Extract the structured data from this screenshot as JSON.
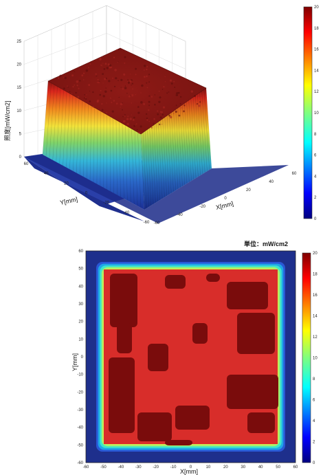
{
  "figure": {
    "unit_label": "単位：mW/cm2"
  },
  "chart_data": [
    {
      "type": "surface",
      "title": "",
      "xlabel": "X[mm]",
      "ylabel": "Y[mm]",
      "zlabel": "照度[mW/cm2]",
      "xlim": [
        -60,
        60
      ],
      "ylim": [
        -60,
        60
      ],
      "zlim": [
        0,
        25
      ],
      "x_ticks": [
        "-60",
        "-40",
        "-20",
        "0",
        "20",
        "40",
        "60"
      ],
      "y_ticks": [
        "60",
        "40",
        "20",
        "0",
        "-20",
        "-40",
        "-60"
      ],
      "z_ticks": [
        "0",
        "5",
        "10",
        "15",
        "20",
        "25"
      ],
      "plateau_value": 20,
      "plateau_extent_mm": [
        -55,
        55
      ],
      "grid": true,
      "colorbar": {
        "range": [
          0,
          20
        ],
        "ticks": [
          "0",
          "2",
          "4",
          "6",
          "8",
          "10",
          "12",
          "14",
          "16",
          "18",
          "20"
        ],
        "colormap": "jet"
      }
    },
    {
      "type": "heatmap",
      "title": "",
      "xlabel": "X[mm]",
      "ylabel": "Y[mm]",
      "xlim": [
        -60,
        60
      ],
      "ylim": [
        -60,
        60
      ],
      "x_ticks": [
        "-60",
        "-50",
        "-40",
        "-30",
        "-20",
        "-10",
        "0",
        "10",
        "20",
        "30",
        "40",
        "50",
        "60"
      ],
      "y_ticks": [
        "60",
        "50",
        "40",
        "30",
        "20",
        "10",
        "0",
        "-10",
        "-20",
        "-30",
        "-40",
        "-50",
        "-60"
      ],
      "plateau_value": 19,
      "plateau_extent_mm": [
        -55,
        55
      ],
      "background_value": 0,
      "colorbar": {
        "range": [
          0,
          20
        ],
        "ticks": [
          "0",
          "2",
          "4",
          "6",
          "8",
          "10",
          "12",
          "14",
          "16",
          "18",
          "20"
        ],
        "colormap": "jet"
      },
      "colors": {
        "high": "#7a0c0c",
        "plateau": "#d82d2a",
        "background": "#1e2f8c"
      }
    }
  ]
}
